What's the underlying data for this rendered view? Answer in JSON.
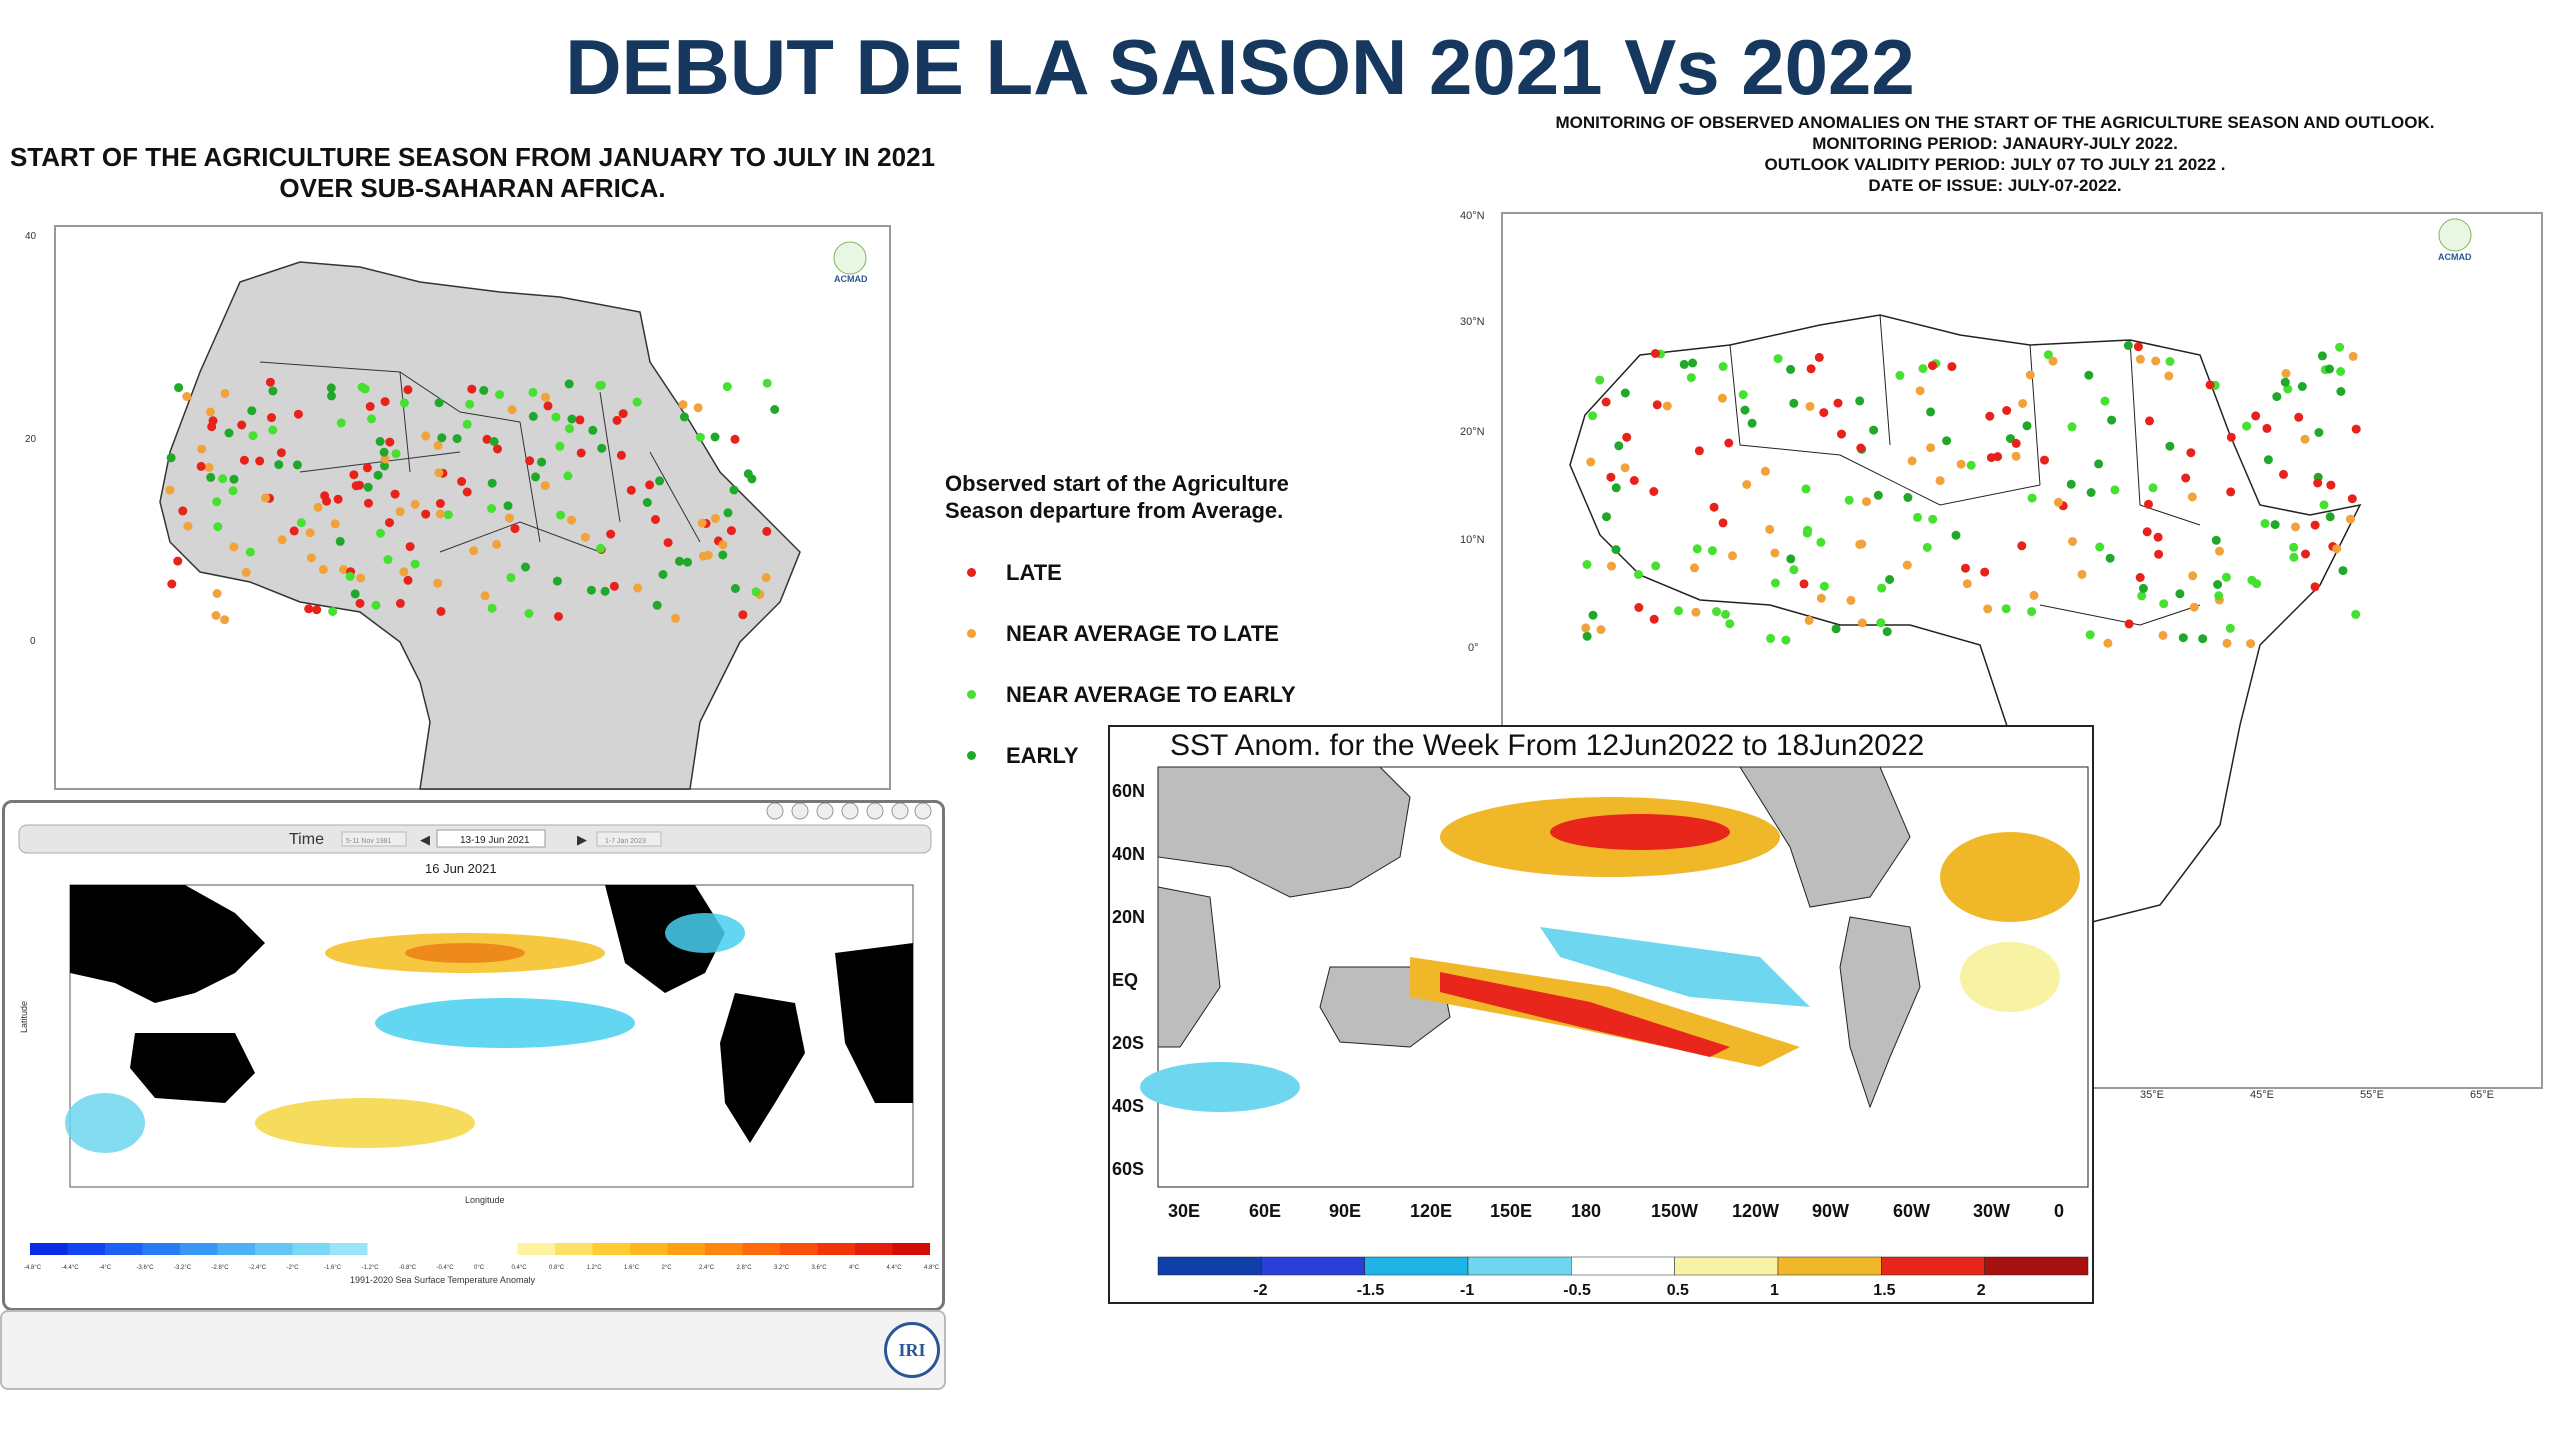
{
  "title": "DEBUT DE LA SAISON 2021 Vs 2022",
  "left_map": {
    "caption_line1": "START OF THE AGRICULTURE SEASON FROM JANUARY TO JULY IN 2021",
    "caption_line2": "OVER SUB-SAHARAN AFRICA.",
    "lat_ticks": [
      "40",
      "20",
      "0"
    ],
    "logo_text": "ACMAD"
  },
  "right_map": {
    "caption_lines": [
      "MONITORING OF OBSERVED ANOMALIES ON THE START OF THE AGRICULTURE SEASON AND OUTLOOK.",
      "MONITORING PERIOD:  JANAURY-JULY 2022.",
      "OUTLOOK VALIDITY PERIOD: JULY 07 TO JULY 21 2022 .",
      "DATE OF ISSUE: JULY-07-2022."
    ],
    "lat_ticks": [
      "40°N",
      "30°N",
      "20°N",
      "10°N",
      "0°"
    ],
    "lon_ticks": [
      "35°E",
      "45°E",
      "55°E",
      "65°E"
    ],
    "logo_text": "ACMAD"
  },
  "legend": {
    "title_line1": "Observed start of the Agriculture",
    "title_line2": "Season departure from Average.",
    "items": [
      {
        "label": "LATE",
        "color": "#e8221b"
      },
      {
        "label": "NEAR AVERAGE TO LATE",
        "color": "#f2a23a"
      },
      {
        "label": "NEAR AVERAGE TO EARLY",
        "color": "#45e030"
      },
      {
        "label": "EARLY",
        "color": "#1fa82a"
      }
    ]
  },
  "iri_viewer": {
    "time_label": "Time",
    "prev_date": "5-11 Nov 1981",
    "current_date": "13-19 Jun 2021",
    "next_date": "1-7 Jan 2023",
    "map_title": "16 Jun 2021",
    "y_axis_label": "Latitude",
    "x_axis_label": "Longitude",
    "colorbar_labels": [
      "-4.8°C",
      "-4.4°C",
      "-4°C",
      "-3.6°C",
      "-3.2°C",
      "-2.8°C",
      "-2.4°C",
      "-2°C",
      "-1.6°C",
      "-1.2°C",
      "-0.8°C",
      "-0.4°C",
      "0°C",
      "0.4°C",
      "0.8°C",
      "1.2°C",
      "1.6°C",
      "2°C",
      "2.4°C",
      "2.8°C",
      "3.2°C",
      "3.6°C",
      "4°C",
      "4.4°C",
      "4.8°C"
    ],
    "colorbar_title": "1991-2020 Sea Surface Temperature Anomaly",
    "logo_text": "IRI"
  },
  "sst_map": {
    "title": "SST Anom. for the Week From 12Jun2022 to 18Jun2022",
    "lat_labels": [
      "60N",
      "40N",
      "20N",
      "EQ",
      "20S",
      "40S",
      "60S"
    ],
    "lon_labels": [
      "30E",
      "60E",
      "90E",
      "120E",
      "150E",
      "180",
      "150W",
      "120W",
      "90W",
      "60W",
      "30W",
      "0"
    ],
    "colorbar_labels": [
      "-2",
      "-1.5",
      "-1",
      "-0.5",
      "0.5",
      "1",
      "1.5",
      "2"
    ],
    "colorbar_colors": [
      "#0f3fa8",
      "#2a3fd8",
      "#1eb4e6",
      "#6fd6ef",
      "#ffffff",
      "#f8f2a4",
      "#f0b828",
      "#e8261c",
      "#a81010"
    ]
  }
}
